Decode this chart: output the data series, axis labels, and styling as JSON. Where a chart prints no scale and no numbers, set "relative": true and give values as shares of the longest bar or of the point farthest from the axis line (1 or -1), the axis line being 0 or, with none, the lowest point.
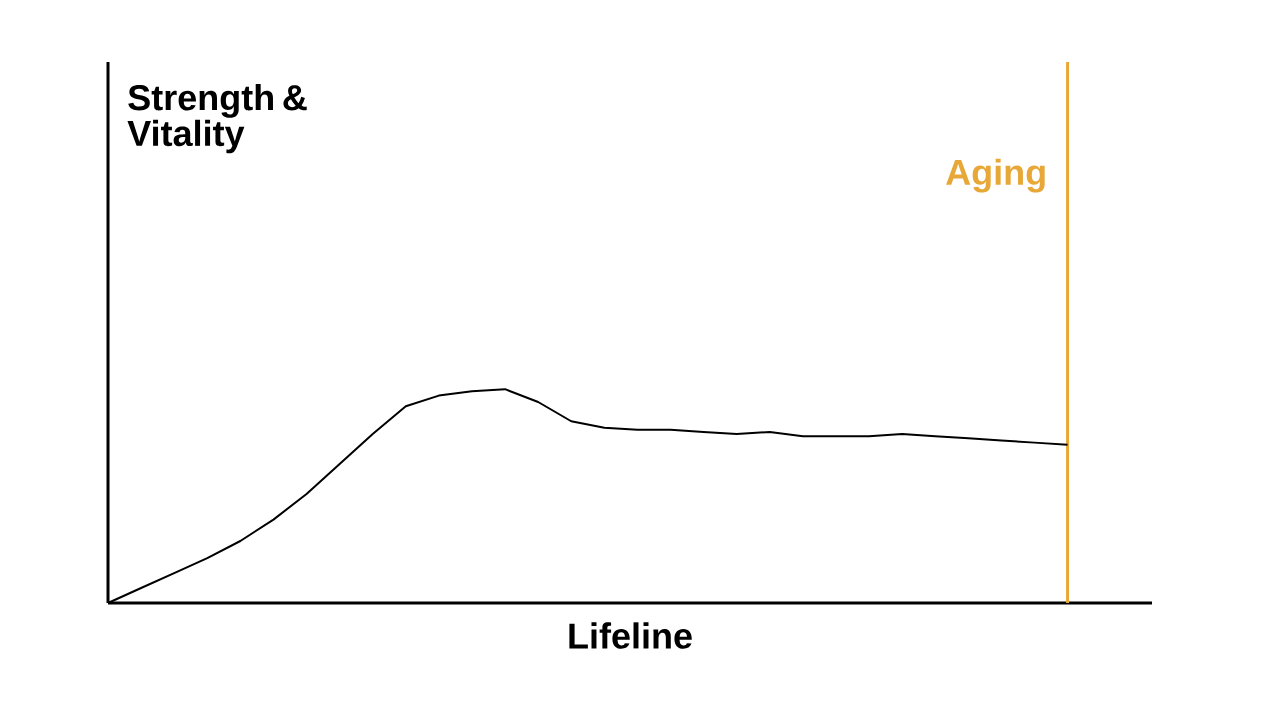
{
  "chart_data": {
    "type": "line",
    "relative": true,
    "xlabel": "Lifeline",
    "annotations": [
      "Strength & Vitality"
    ],
    "color": "#000000",
    "line_style": "solid",
    "tick_labels": false,
    "categories": [
      null,
      null,
      null,
      null,
      null,
      null,
      null,
      null,
      null,
      null,
      null,
      null,
      null,
      null,
      null,
      null,
      null,
      null,
      null,
      null,
      null,
      null,
      null,
      null,
      null,
      null,
      null,
      null,
      null,
      null
    ],
    "values": [
      0,
      0.07,
      0.14,
      0.21,
      0.29,
      0.39,
      0.51,
      0.65,
      0.79,
      0.92,
      0.97,
      0.99,
      1.0,
      0.94,
      0.85,
      0.82,
      0.81,
      0.81,
      0.8,
      0.79,
      0.8,
      0.78,
      0.78,
      0.78,
      0.79,
      0.78,
      0.77,
      0.76,
      0.75,
      0.74
    ],
    "ref_lines": [
      {
        "axis": "x",
        "label": "Aging",
        "color": "#e8a838",
        "line_style": "solid"
      }
    ]
  }
}
